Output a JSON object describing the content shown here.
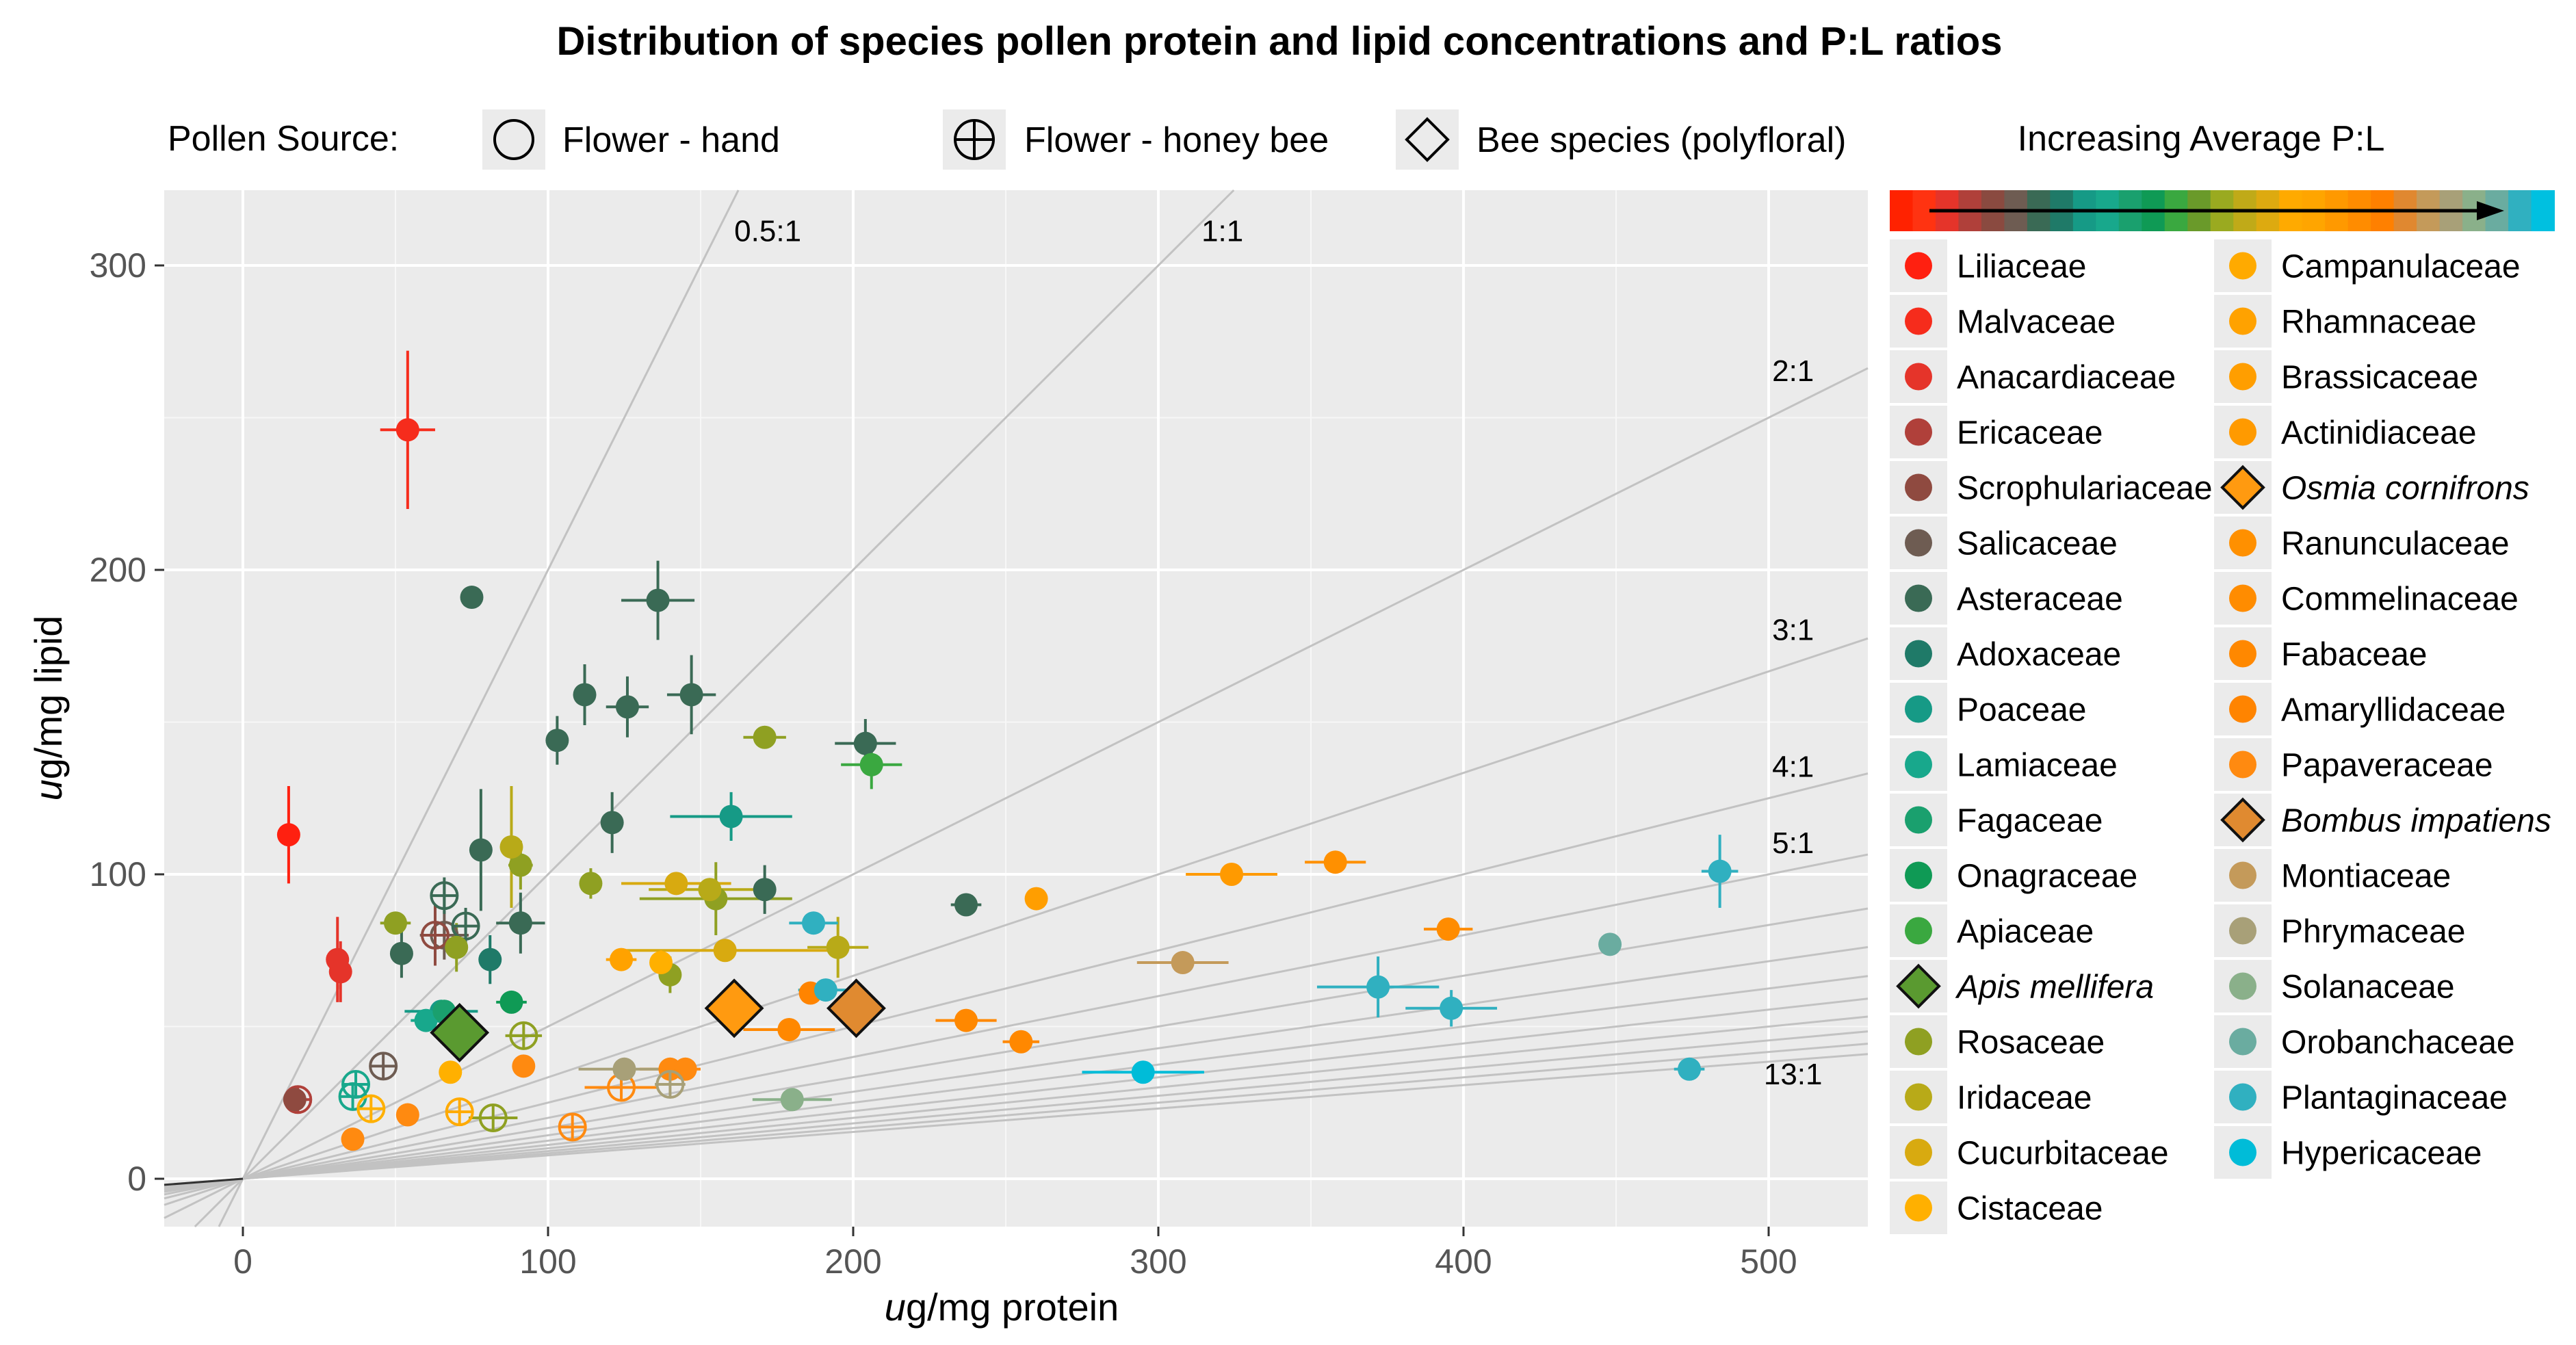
{
  "chart_data": {
    "type": "scatter",
    "title": "Distribution of species pollen protein and lipid concentrations and P:L ratios",
    "xlabel": "ug/mg protein",
    "ylabel": "ug/mg lipid",
    "xlim": [
      -25,
      535
    ],
    "ylim": [
      -15,
      325
    ],
    "x_ticks": [
      0,
      100,
      200,
      300,
      400,
      500
    ],
    "x_tick_labels": [
      "0",
      "100",
      "200",
      "300",
      "400",
      "500"
    ],
    "y_ticks": [
      0,
      100,
      200,
      300
    ],
    "y_tick_labels": [
      "0",
      "100",
      "200",
      "300"
    ],
    "grid": true,
    "legend_shapes": {
      "heading": "Pollen Source:",
      "items": [
        {
          "label": "Flower - hand",
          "shape": "circle"
        },
        {
          "label": "Flower - honey bee",
          "shape": "circle-plus"
        },
        {
          "label": "Bee species (polyfloral)",
          "shape": "diamond"
        }
      ]
    },
    "colorbar": {
      "label": "Increasing Average P:L",
      "colors": [
        "#ff2200",
        "#ff3311",
        "#e5342a",
        "#b0403a",
        "#8a4a40",
        "#6e5c52",
        "#3a6a55",
        "#1f7a68",
        "#169a86",
        "#18a88c",
        "#1aa06e",
        "#0f9a55",
        "#3aa840",
        "#6a9a2a",
        "#9aaa20",
        "#c0aa18",
        "#ddaa10",
        "#ffaa00",
        "#ffa500",
        "#ff9900",
        "#ff8c00",
        "#ff8000",
        "#e08830",
        "#c49a5a",
        "#a8a078",
        "#8ab08a",
        "#6aaca0",
        "#30b0c0",
        "#00c0e0"
      ]
    },
    "ratio_lines": {
      "slopes": [
        2,
        1,
        0.5,
        0.3333,
        0.25,
        0.2,
        0.1667,
        0.1429,
        0.125,
        0.1111,
        0.1,
        0.0909,
        0.0833,
        0.0769
      ],
      "labels": [
        {
          "text": "0.5:1",
          "x": 172,
          "y": 308
        },
        {
          "text": "1:1",
          "x": 321,
          "y": 308
        },
        {
          "text": "2:1",
          "x": 508,
          "y": 262
        },
        {
          "text": "3:1",
          "x": 508,
          "y": 177
        },
        {
          "text": "4:1",
          "x": 508,
          "y": 132
        },
        {
          "text": "5:1",
          "x": 508,
          "y": 107
        },
        {
          "text": "13:1",
          "x": 508,
          "y": 31
        }
      ]
    },
    "legend_families": [
      {
        "name": "Liliaceae",
        "color": "#ff2010",
        "shape": "circle"
      },
      {
        "name": "Malvaceae",
        "color": "#f62c1c",
        "shape": "circle"
      },
      {
        "name": "Anacardiaceae",
        "color": "#e5342a",
        "shape": "circle"
      },
      {
        "name": "Ericaceae",
        "color": "#b0403a",
        "shape": "circle"
      },
      {
        "name": "Scrophulariaceae",
        "color": "#8f4a40",
        "shape": "circle"
      },
      {
        "name": "Salicaceae",
        "color": "#6e5c52",
        "shape": "circle"
      },
      {
        "name": "Asteraceae",
        "color": "#3a6a55",
        "shape": "circle"
      },
      {
        "name": "Adoxaceae",
        "color": "#1f7a68",
        "shape": "circle"
      },
      {
        "name": "Poaceae",
        "color": "#169a86",
        "shape": "circle"
      },
      {
        "name": "Lamiaceae",
        "color": "#18a88c",
        "shape": "circle"
      },
      {
        "name": "Fagaceae",
        "color": "#1aa06e",
        "shape": "circle"
      },
      {
        "name": "Onagraceae",
        "color": "#0f9a55",
        "shape": "circle"
      },
      {
        "name": "Apiaceae",
        "color": "#3aa840",
        "shape": "circle"
      },
      {
        "name": "Apis mellifera",
        "color": "#5a9a30",
        "shape": "diamond",
        "italic": true
      },
      {
        "name": "Rosaceae",
        "color": "#8fa022",
        "shape": "circle"
      },
      {
        "name": "Iridaceae",
        "color": "#b8aa18",
        "shape": "circle"
      },
      {
        "name": "Cucurbitaceae",
        "color": "#d8aa10",
        "shape": "circle"
      },
      {
        "name": "Cistaceae",
        "color": "#ffb000",
        "shape": "circle"
      },
      {
        "name": "Campanulaceae",
        "color": "#ffaa00",
        "shape": "circle"
      },
      {
        "name": "Rhamnaceae",
        "color": "#ffa200",
        "shape": "circle"
      },
      {
        "name": "Brassicaceae",
        "color": "#ff9e00",
        "shape": "circle"
      },
      {
        "name": "Actinidiaceae",
        "color": "#ff9a00",
        "shape": "circle"
      },
      {
        "name": "Osmia cornifrons",
        "color": "#ff9a10",
        "shape": "diamond",
        "italic": true
      },
      {
        "name": "Ranunculaceae",
        "color": "#ff9000",
        "shape": "circle"
      },
      {
        "name": "Commelinaceae",
        "color": "#ff8c00",
        "shape": "circle"
      },
      {
        "name": "Fabaceae",
        "color": "#ff8800",
        "shape": "circle"
      },
      {
        "name": "Amaryllidaceae",
        "color": "#ff8400",
        "shape": "circle"
      },
      {
        "name": "Papaveraceae",
        "color": "#ff8a10",
        "shape": "circle"
      },
      {
        "name": "Bombus impatiens",
        "color": "#e08a30",
        "shape": "diamond",
        "italic": true
      },
      {
        "name": "Montiaceae",
        "color": "#c49a5a",
        "shape": "circle"
      },
      {
        "name": "Phrymaceae",
        "color": "#a8a078",
        "shape": "circle"
      },
      {
        "name": "Solanaceae",
        "color": "#8ab08a",
        "shape": "circle"
      },
      {
        "name": "Orobanchaceae",
        "color": "#6aaca0",
        "shape": "circle"
      },
      {
        "name": "Plantaginaceae",
        "color": "#30b0c0",
        "shape": "circle"
      },
      {
        "name": "Hypericaceae",
        "color": "#00bcd8",
        "shape": "circle"
      }
    ],
    "points": [
      {
        "family": "Malvaceae",
        "x": 54,
        "y": 246,
        "xerr": 9,
        "yerr": 26,
        "shape": "circle"
      },
      {
        "family": "Liliaceae",
        "x": 15,
        "y": 113,
        "yerr": 16,
        "shape": "circle"
      },
      {
        "family": "Anacardiaceae",
        "x": 31,
        "y": 72,
        "yerr": 14,
        "shape": "circle"
      },
      {
        "family": "Anacardiaceae",
        "x": 32,
        "y": 68,
        "yerr": 10,
        "shape": "circle"
      },
      {
        "family": "Ericaceae",
        "x": 18,
        "y": 26,
        "shape": "circle-plus"
      },
      {
        "family": "Scrophulariaceae",
        "x": 17,
        "y": 26,
        "shape": "circle"
      },
      {
        "family": "Salicaceae",
        "x": 46,
        "y": 37,
        "shape": "circle-plus"
      },
      {
        "family": "Salicaceae",
        "x": 66,
        "y": 80,
        "xerr": 8,
        "yerr": 8,
        "shape": "circle-plus"
      },
      {
        "family": "Scrophulariaceae",
        "x": 63,
        "y": 80,
        "yerr": 10,
        "shape": "circle-plus"
      },
      {
        "family": "Asteraceae",
        "x": 75,
        "y": 191,
        "shape": "circle"
      },
      {
        "family": "Asteraceae",
        "x": 136,
        "y": 190,
        "xerr": 12,
        "yerr": 13,
        "shape": "circle"
      },
      {
        "family": "Asteraceae",
        "x": 112,
        "y": 159,
        "yerr": 10,
        "shape": "circle"
      },
      {
        "family": "Asteraceae",
        "x": 126,
        "y": 155,
        "xerr": 7,
        "yerr": 10,
        "shape": "circle"
      },
      {
        "family": "Asteraceae",
        "x": 147,
        "y": 159,
        "xerr": 8,
        "yerr": 13,
        "shape": "circle"
      },
      {
        "family": "Asteraceae",
        "x": 103,
        "y": 144,
        "yerr": 8,
        "shape": "circle"
      },
      {
        "family": "Asteraceae",
        "x": 204,
        "y": 143,
        "xerr": 10,
        "yerr": 8,
        "shape": "circle"
      },
      {
        "family": "Asteraceae",
        "x": 121,
        "y": 117,
        "yerr": 10,
        "shape": "circle"
      },
      {
        "family": "Asteraceae",
        "x": 78,
        "y": 108,
        "yerr": 20,
        "shape": "circle"
      },
      {
        "family": "Asteraceae",
        "x": 171,
        "y": 95,
        "yerr": 8,
        "shape": "circle"
      },
      {
        "family": "Asteraceae",
        "x": 91,
        "y": 84,
        "xerr": 8,
        "yerr": 10,
        "shape": "circle"
      },
      {
        "family": "Asteraceae",
        "x": 52,
        "y": 74,
        "yerr": 8,
        "shape": "circle"
      },
      {
        "family": "Asteraceae",
        "x": 237,
        "y": 90,
        "xerr": 5,
        "shape": "circle"
      },
      {
        "family": "Asteraceae",
        "x": 66,
        "y": 93,
        "yerr": 6,
        "shape": "circle-plus"
      },
      {
        "family": "Asteraceae",
        "x": 73,
        "y": 83,
        "yerr": 6,
        "shape": "circle-plus"
      },
      {
        "family": "Adoxaceae",
        "x": 81,
        "y": 72,
        "yerr": 8,
        "shape": "circle"
      },
      {
        "family": "Poaceae",
        "x": 160,
        "y": 119,
        "xerr": 20,
        "yerr": 8,
        "shape": "circle"
      },
      {
        "family": "Poaceae",
        "x": 65,
        "y": 55,
        "xerr": 12,
        "shape": "circle"
      },
      {
        "family": "Lamiaceae",
        "x": 60,
        "y": 52,
        "xerr": 5,
        "shape": "circle"
      },
      {
        "family": "Lamiaceae",
        "x": 37,
        "y": 31,
        "yerr": 4,
        "shape": "circle-plus"
      },
      {
        "family": "Lamiaceae",
        "x": 36,
        "y": 27,
        "shape": "circle-plus"
      },
      {
        "family": "Fagaceae",
        "x": 66,
        "y": 55,
        "xerr": 6,
        "shape": "circle"
      },
      {
        "family": "Onagraceae",
        "x": 88,
        "y": 58,
        "xerr": 5,
        "shape": "circle"
      },
      {
        "family": "Apiaceae",
        "x": 206,
        "y": 136,
        "xerr": 10,
        "yerr": 8,
        "shape": "circle"
      },
      {
        "family": "Apis mellifera",
        "x": 71,
        "y": 48,
        "shape": "diamond"
      },
      {
        "family": "Rosaceae",
        "x": 171,
        "y": 145,
        "xerr": 7,
        "shape": "circle"
      },
      {
        "family": "Rosaceae",
        "x": 114,
        "y": 97,
        "yerr": 5,
        "shape": "circle"
      },
      {
        "family": "Rosaceae",
        "x": 50,
        "y": 84,
        "xerr": 5,
        "shape": "circle"
      },
      {
        "family": "Rosaceae",
        "x": 91,
        "y": 103,
        "xerr": 4,
        "yerr": 8,
        "shape": "circle"
      },
      {
        "family": "Rosaceae",
        "x": 155,
        "y": 92,
        "xerr": 25,
        "yerr": 12,
        "shape": "circle"
      },
      {
        "family": "Rosaceae",
        "x": 70,
        "y": 76,
        "yerr": 8,
        "shape": "circle"
      },
      {
        "family": "Rosaceae",
        "x": 140,
        "y": 67,
        "yerr": 6,
        "shape": "circle"
      },
      {
        "family": "Rosaceae",
        "x": 92,
        "y": 47,
        "xerr": 6,
        "shape": "circle-plus"
      },
      {
        "family": "Rosaceae",
        "x": 82,
        "y": 20,
        "xerr": 8,
        "shape": "circle-plus"
      },
      {
        "family": "Iridaceae",
        "x": 88,
        "y": 109,
        "yerr": 20,
        "shape": "circle"
      },
      {
        "family": "Iridaceae",
        "x": 195,
        "y": 76,
        "xerr": 10,
        "yerr": 10,
        "shape": "circle"
      },
      {
        "family": "Iridaceae",
        "x": 153,
        "y": 95,
        "xerr": 20,
        "shape": "circle"
      },
      {
        "family": "Cucurbitaceae",
        "x": 142,
        "y": 97,
        "xerr": 18,
        "shape": "circle"
      },
      {
        "family": "Cucurbitaceae",
        "x": 158,
        "y": 75,
        "xerr": 35,
        "shape": "circle"
      },
      {
        "family": "Cistaceae",
        "x": 137,
        "y": 71,
        "yerr": 4,
        "shape": "circle"
      },
      {
        "family": "Cistaceae",
        "x": 42,
        "y": 23,
        "shape": "circle-plus"
      },
      {
        "family": "Cistaceae",
        "x": 68,
        "y": 35,
        "shape": "circle"
      },
      {
        "family": "Campanulaceae",
        "x": 71,
        "y": 22,
        "shape": "circle-plus"
      },
      {
        "family": "Rhamnaceae",
        "x": 124,
        "y": 72,
        "xerr": 5,
        "shape": "circle"
      },
      {
        "family": "Brassicaceae",
        "x": 260,
        "y": 92,
        "shape": "circle"
      },
      {
        "family": "Actinidiaceae",
        "x": 324,
        "y": 100,
        "xerr": 15,
        "shape": "circle"
      },
      {
        "family": "Osmia cornifrons",
        "x": 161,
        "y": 56,
        "shape": "diamond"
      },
      {
        "family": "Ranunculaceae",
        "x": 358,
        "y": 104,
        "xerr": 10,
        "shape": "circle"
      },
      {
        "family": "Commelinaceae",
        "x": 395,
        "y": 82,
        "xerr": 8,
        "shape": "circle"
      },
      {
        "family": "Fabaceae",
        "x": 237,
        "y": 52,
        "xerr": 10,
        "shape": "circle"
      },
      {
        "family": "Fabaceae",
        "x": 255,
        "y": 45,
        "xerr": 6,
        "shape": "circle"
      },
      {
        "family": "Fabaceae",
        "x": 179,
        "y": 49,
        "xerr": 15,
        "shape": "circle"
      },
      {
        "family": "Amaryllidaceae",
        "x": 186,
        "y": 61,
        "shape": "circle"
      },
      {
        "family": "Papaveraceae",
        "x": 140,
        "y": 36,
        "xerr": 10,
        "shape": "circle"
      },
      {
        "family": "Papaveraceae",
        "x": 145,
        "y": 36,
        "shape": "circle"
      },
      {
        "family": "Papaveraceae",
        "x": 92,
        "y": 37,
        "shape": "circle"
      },
      {
        "family": "Papaveraceae",
        "x": 54,
        "y": 21,
        "shape": "circle"
      },
      {
        "family": "Papaveraceae",
        "x": 36,
        "y": 13,
        "shape": "circle"
      },
      {
        "family": "Papaveraceae",
        "x": 124,
        "y": 30,
        "xerr": 12,
        "shape": "circle-plus"
      },
      {
        "family": "Papaveraceae",
        "x": 108,
        "y": 17,
        "shape": "circle-plus"
      },
      {
        "family": "Bombus impatiens",
        "x": 201,
        "y": 56,
        "shape": "diamond"
      },
      {
        "family": "Montiaceae",
        "x": 308,
        "y": 71,
        "xerr": 15,
        "shape": "circle"
      },
      {
        "family": "Phrymaceae",
        "x": 125,
        "y": 36,
        "xerr": 15,
        "shape": "circle"
      },
      {
        "family": "Phrymaceae",
        "x": 140,
        "y": 31,
        "xerr": 5,
        "shape": "circle-plus"
      },
      {
        "family": "Solanaceae",
        "x": 180,
        "y": 26,
        "xerr": 13,
        "shape": "circle"
      },
      {
        "family": "Orobanchaceae",
        "x": 448,
        "y": 77,
        "shape": "circle"
      },
      {
        "family": "Plantaginaceae",
        "x": 187,
        "y": 84,
        "xerr": 8,
        "shape": "circle"
      },
      {
        "family": "Plantaginaceae",
        "x": 191,
        "y": 62,
        "xerr": 9,
        "shape": "circle"
      },
      {
        "family": "Plantaginaceae",
        "x": 372,
        "y": 63,
        "xerr": 20,
        "yerr": 10,
        "shape": "circle"
      },
      {
        "family": "Plantaginaceae",
        "x": 396,
        "y": 56,
        "xerr": 15,
        "yerr": 6,
        "shape": "circle"
      },
      {
        "family": "Plantaginaceae",
        "x": 484,
        "y": 101,
        "xerr": 6,
        "yerr": 12,
        "shape": "circle"
      },
      {
        "family": "Plantaginaceae",
        "x": 474,
        "y": 36,
        "xerr": 5,
        "shape": "circle"
      },
      {
        "family": "Hypericaceae",
        "x": 295,
        "y": 35,
        "xerr": 20,
        "shape": "circle"
      }
    ]
  }
}
